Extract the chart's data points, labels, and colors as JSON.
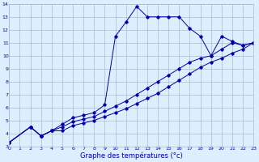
{
  "title": "Graphe des températures (°c)",
  "bg_color": "#ddeeff",
  "grid_color": "#aabbcc",
  "line_color": "#0000aa",
  "x_min": 0,
  "x_max": 23,
  "y_min": 3,
  "y_max": 14,
  "series": [
    {
      "x": [
        0,
        2,
        3,
        4,
        5,
        6,
        7,
        8,
        9,
        10,
        11,
        12,
        13,
        14,
        15,
        16,
        17,
        18,
        19,
        20,
        21,
        22,
        23
      ],
      "y": [
        3.3,
        4.5,
        3.8,
        4.2,
        4.7,
        5.2,
        5.4,
        5.6,
        6.2,
        11.5,
        12.6,
        13.8,
        13.0,
        13.0,
        13.0,
        13.0,
        12.1,
        11.5,
        10.0,
        11.5,
        11.1,
        10.8,
        11.0
      ]
    },
    {
      "x": [
        0,
        2,
        3,
        4,
        5,
        6,
        7,
        8,
        9,
        10,
        11,
        12,
        13,
        14,
        15,
        16,
        17,
        18,
        19,
        20,
        21,
        22,
        23
      ],
      "y": [
        3.3,
        4.5,
        3.8,
        4.2,
        4.5,
        4.9,
        5.1,
        5.3,
        5.7,
        6.1,
        6.5,
        7.0,
        7.5,
        8.0,
        8.5,
        9.0,
        9.5,
        9.8,
        10.0,
        10.5,
        11.0,
        10.8,
        11.0
      ]
    },
    {
      "x": [
        0,
        2,
        3,
        4,
        5,
        6,
        7,
        8,
        9,
        10,
        11,
        12,
        13,
        14,
        15,
        16,
        17,
        18,
        19,
        20,
        21,
        22,
        23
      ],
      "y": [
        3.3,
        4.5,
        3.8,
        4.2,
        4.2,
        4.6,
        4.8,
        5.0,
        5.3,
        5.6,
        5.9,
        6.3,
        6.7,
        7.1,
        7.6,
        8.1,
        8.6,
        9.1,
        9.5,
        9.8,
        10.2,
        10.5,
        11.0
      ]
    }
  ]
}
